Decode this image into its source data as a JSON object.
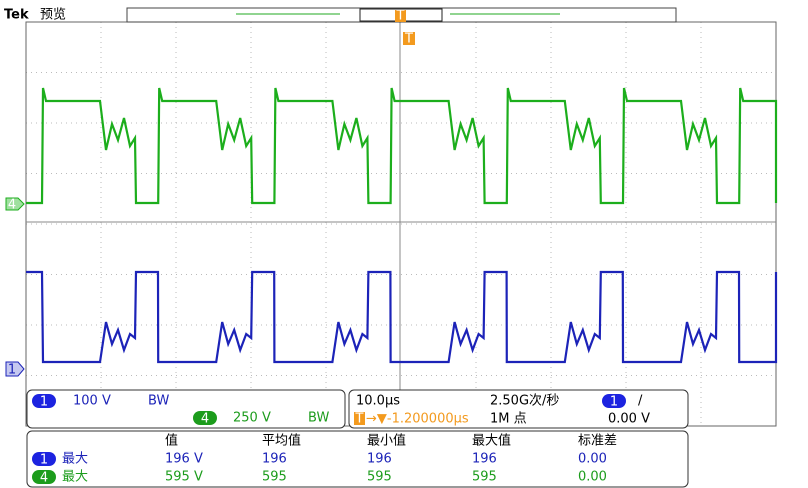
{
  "header": {
    "brand": "Tek",
    "mode": "预览",
    "trigger_marker": "T"
  },
  "channel_markers": {
    "ch4": "4",
    "ch1": "1"
  },
  "vertical": {
    "ch1_badge": "1",
    "ch1_scale": "100 V",
    "ch1_bw": "BW",
    "ch4_badge": "4",
    "ch4_scale": "250 V",
    "ch4_bw": "BW"
  },
  "horizontal": {
    "time_scale": "10.0μs",
    "sample_rate": "2.50G次/秒",
    "trigger_icon": "T",
    "trigger_position": "→▼-1.200000μs",
    "record_length": "1M 点",
    "trigger_source": "1",
    "trigger_slope": "/",
    "trigger_level": "0.00 V"
  },
  "table": {
    "headers": [
      "值",
      "平均值",
      "最小值",
      "最大值",
      "标准差"
    ],
    "rows": [
      [
        "1",
        "最大",
        "196 V",
        "196",
        "196",
        "196",
        "0.00"
      ],
      [
        "4",
        "最大",
        "595 V",
        "595",
        "595",
        "595",
        "0.00"
      ]
    ]
  }
}
